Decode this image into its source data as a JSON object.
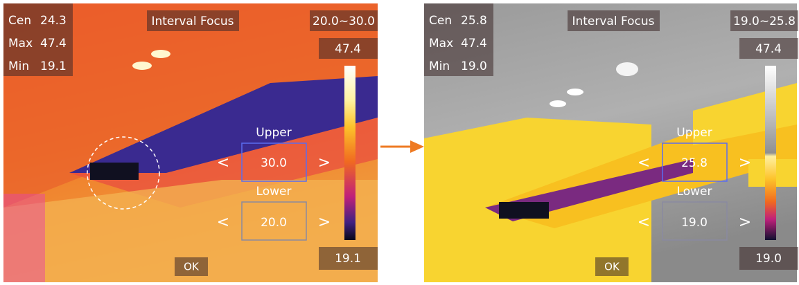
{
  "panels": [
    {
      "cen_label": "Cen",
      "cen": "24.3",
      "max_label": "Max",
      "max": "47.4",
      "min_label": "Min",
      "min": "19.1",
      "mode": "Interval Focus",
      "range": "20.0~30.0",
      "scale_max": "47.4",
      "scale_min": "19.1",
      "upper_label": "Upper",
      "upper": "30.0",
      "lower_label": "Lower",
      "lower": "20.0",
      "prev": "<",
      "next": ">",
      "ok": "OK"
    },
    {
      "cen_label": "Cen",
      "cen": "25.8",
      "max_label": "Max",
      "max": "47.4",
      "min_label": "Min",
      "min": "19.0",
      "mode": "Interval Focus",
      "range": "19.0~25.8",
      "scale_max": "47.4",
      "scale_min": "19.0",
      "upper_label": "Upper",
      "upper": "25.8",
      "lower_label": "Lower",
      "lower": "19.0",
      "prev": "<",
      "next": ">",
      "ok": "OK"
    }
  ]
}
